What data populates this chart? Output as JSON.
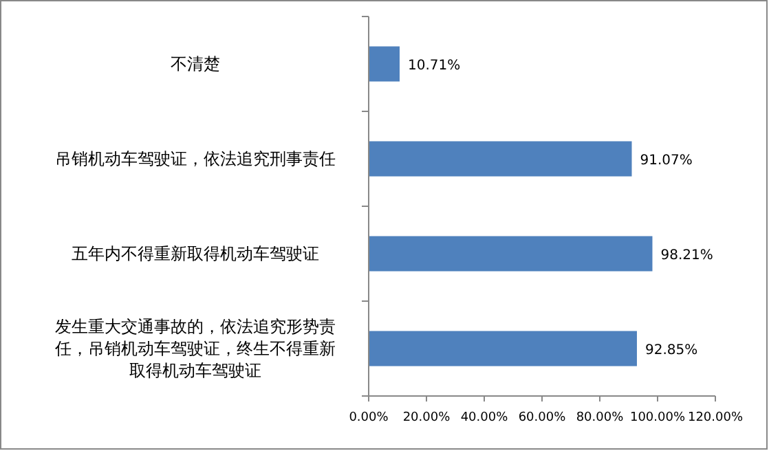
{
  "chart_data": {
    "type": "bar",
    "orientation": "horizontal",
    "categories": [
      "不清楚",
      "吊销机动车驾驶证，依法追究刑事责任",
      "五年内不得重新取得机动车驾驶证",
      "发生重大交通事故的，依法追究形势责任，吊销机动车驾驶证，终生不得重新取得机动车驾驶证"
    ],
    "values": [
      10.71,
      91.07,
      98.21,
      92.85
    ],
    "value_labels": [
      "10.71%",
      "91.07%",
      "98.21%",
      "92.85%"
    ],
    "color": "#4f81bd",
    "xlim": [
      0,
      120
    ],
    "xticks": [
      {
        "value": 0,
        "label": "0.00%"
      },
      {
        "value": 20,
        "label": "20.00%"
      },
      {
        "value": 40,
        "label": "40.00%"
      },
      {
        "value": 60,
        "label": "60.00%"
      },
      {
        "value": 80,
        "label": "80.00%"
      },
      {
        "value": 100,
        "label": "100.00%"
      },
      {
        "value": 120,
        "label": "120.00%"
      }
    ],
    "grid": false
  }
}
